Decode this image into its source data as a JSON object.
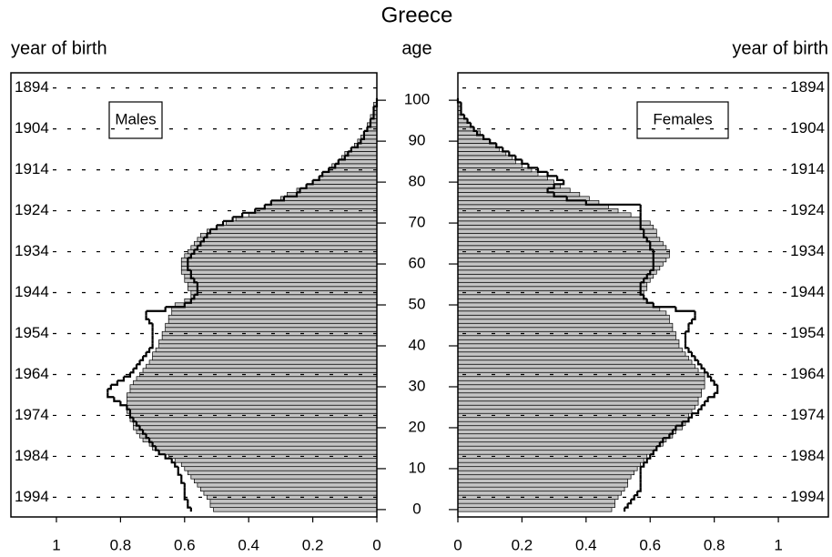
{
  "chart_data": {
    "type": "population_pyramid",
    "title": "Greece",
    "y_label": "age",
    "y2_label": "year of birth",
    "y": [
      0,
      1,
      2,
      3,
      4,
      5,
      6,
      7,
      8,
      9,
      10,
      11,
      12,
      13,
      14,
      15,
      16,
      17,
      18,
      19,
      20,
      21,
      22,
      23,
      24,
      25,
      26,
      27,
      28,
      29,
      30,
      31,
      32,
      33,
      34,
      35,
      36,
      37,
      38,
      39,
      40,
      41,
      42,
      43,
      44,
      45,
      46,
      47,
      48,
      49,
      50,
      51,
      52,
      53,
      54,
      55,
      56,
      57,
      58,
      59,
      60,
      61,
      62,
      63,
      64,
      65,
      66,
      67,
      68,
      69,
      70,
      71,
      72,
      73,
      74,
      75,
      76,
      77,
      78,
      79,
      80,
      81,
      82,
      83,
      84,
      85,
      86,
      87,
      88,
      89,
      90,
      91,
      92,
      93,
      94,
      95,
      96,
      97,
      98,
      99,
      100
    ],
    "ylim": [
      -1.8,
      106.7
    ],
    "yticks": [
      0,
      10,
      20,
      30,
      40,
      50,
      60,
      70,
      80,
      90,
      100
    ],
    "y2lim": [
      1998.8,
      1890.3
    ],
    "y2ticks": [
      1894,
      1904,
      1914,
      1924,
      1934,
      1944,
      1954,
      1964,
      1974,
      1984,
      1994
    ],
    "grid": true,
    "panels": [
      {
        "name": "Males",
        "side": "left",
        "xlim": [
          0,
          1.142
        ],
        "xticks": [
          0,
          0.2,
          0.4,
          0.6,
          0.8,
          1
        ],
        "series": [
          {
            "color": "#c4c4c4",
            "values": [
              0.51,
              0.52,
              0.52,
              0.53,
              0.54,
              0.55,
              0.56,
              0.57,
              0.58,
              0.59,
              0.6,
              0.61,
              0.63,
              0.65,
              0.68,
              0.7,
              0.71,
              0.73,
              0.74,
              0.75,
              0.76,
              0.76,
              0.77,
              0.77,
              0.78,
              0.78,
              0.78,
              0.78,
              0.78,
              0.77,
              0.77,
              0.76,
              0.75,
              0.74,
              0.73,
              0.72,
              0.71,
              0.7,
              0.7,
              0.69,
              0.68,
              0.68,
              0.67,
              0.67,
              0.66,
              0.66,
              0.65,
              0.65,
              0.64,
              0.64,
              0.63,
              0.6,
              0.58,
              0.58,
              0.59,
              0.59,
              0.6,
              0.6,
              0.61,
              0.61,
              0.61,
              0.61,
              0.6,
              0.59,
              0.58,
              0.57,
              0.56,
              0.55,
              0.53,
              0.5,
              0.47,
              0.44,
              0.4,
              0.38,
              0.35,
              0.33,
              0.3,
              0.28,
              0.25,
              0.22,
              0.2,
              0.18,
              0.17,
              0.15,
              0.14,
              0.12,
              0.11,
              0.1,
              0.08,
              0.07,
              0.06,
              0.05,
              0.04,
              0.03,
              0.03,
              0.02,
              0.02,
              0.01,
              0.01,
              0.01,
              0.0
            ]
          },
          {
            "color": "#000000",
            "style": "outline",
            "values": [
              0.58,
              0.59,
              0.59,
              0.6,
              0.6,
              0.6,
              0.6,
              0.61,
              0.61,
              0.62,
              0.62,
              0.63,
              0.64,
              0.66,
              0.68,
              0.69,
              0.7,
              0.71,
              0.72,
              0.73,
              0.74,
              0.75,
              0.76,
              0.77,
              0.77,
              0.78,
              0.8,
              0.82,
              0.84,
              0.84,
              0.83,
              0.81,
              0.79,
              0.77,
              0.76,
              0.75,
              0.74,
              0.73,
              0.72,
              0.71,
              0.7,
              0.7,
              0.7,
              0.7,
              0.7,
              0.7,
              0.71,
              0.72,
              0.72,
              0.66,
              0.6,
              0.58,
              0.57,
              0.56,
              0.56,
              0.56,
              0.57,
              0.58,
              0.58,
              0.59,
              0.59,
              0.59,
              0.58,
              0.57,
              0.56,
              0.55,
              0.54,
              0.53,
              0.52,
              0.5,
              0.48,
              0.45,
              0.42,
              0.38,
              0.35,
              0.33,
              0.29,
              0.25,
              0.24,
              0.22,
              0.2,
              0.18,
              0.17,
              0.15,
              0.13,
              0.12,
              0.1,
              0.09,
              0.08,
              0.06,
              0.05,
              0.04,
              0.04,
              0.03,
              0.02,
              0.02,
              0.01,
              0.01,
              0.01,
              0.0,
              0.0
            ]
          }
        ]
      },
      {
        "name": "Females",
        "side": "right",
        "xlim": [
          0,
          1.156
        ],
        "xticks": [
          0,
          0.2,
          0.4,
          0.6,
          0.8,
          1
        ],
        "series": [
          {
            "color": "#c4c4c4",
            "values": [
              0.48,
              0.49,
              0.49,
              0.5,
              0.51,
              0.52,
              0.53,
              0.53,
              0.54,
              0.55,
              0.56,
              0.57,
              0.58,
              0.59,
              0.61,
              0.62,
              0.64,
              0.65,
              0.67,
              0.68,
              0.7,
              0.71,
              0.72,
              0.72,
              0.73,
              0.74,
              0.75,
              0.75,
              0.76,
              0.76,
              0.77,
              0.77,
              0.77,
              0.77,
              0.75,
              0.74,
              0.73,
              0.72,
              0.71,
              0.7,
              0.69,
              0.69,
              0.68,
              0.68,
              0.67,
              0.67,
              0.66,
              0.66,
              0.65,
              0.63,
              0.61,
              0.59,
              0.58,
              0.58,
              0.59,
              0.59,
              0.6,
              0.61,
              0.62,
              0.63,
              0.64,
              0.65,
              0.66,
              0.66,
              0.65,
              0.64,
              0.63,
              0.62,
              0.62,
              0.61,
              0.6,
              0.57,
              0.54,
              0.5,
              0.47,
              0.44,
              0.41,
              0.38,
              0.35,
              0.32,
              0.3,
              0.28,
              0.25,
              0.23,
              0.2,
              0.18,
              0.17,
              0.15,
              0.13,
              0.12,
              0.1,
              0.08,
              0.07,
              0.05,
              0.04,
              0.03,
              0.02,
              0.01,
              0.01,
              0.01,
              0.0
            ]
          },
          {
            "color": "#000000",
            "style": "outline",
            "values": [
              0.52,
              0.53,
              0.54,
              0.55,
              0.56,
              0.57,
              0.57,
              0.57,
              0.57,
              0.57,
              0.57,
              0.58,
              0.59,
              0.6,
              0.61,
              0.62,
              0.63,
              0.64,
              0.66,
              0.67,
              0.68,
              0.7,
              0.72,
              0.73,
              0.75,
              0.76,
              0.77,
              0.78,
              0.8,
              0.81,
              0.81,
              0.8,
              0.79,
              0.78,
              0.77,
              0.76,
              0.75,
              0.74,
              0.73,
              0.72,
              0.71,
              0.71,
              0.71,
              0.71,
              0.72,
              0.72,
              0.73,
              0.74,
              0.74,
              0.68,
              0.61,
              0.59,
              0.58,
              0.57,
              0.57,
              0.57,
              0.58,
              0.59,
              0.6,
              0.61,
              0.61,
              0.61,
              0.61,
              0.61,
              0.6,
              0.6,
              0.59,
              0.58,
              0.58,
              0.57,
              0.57,
              0.57,
              0.57,
              0.57,
              0.57,
              0.4,
              0.34,
              0.3,
              0.28,
              0.3,
              0.33,
              0.31,
              0.28,
              0.25,
              0.22,
              0.2,
              0.18,
              0.16,
              0.14,
              0.12,
              0.1,
              0.08,
              0.06,
              0.05,
              0.04,
              0.03,
              0.02,
              0.01,
              0.01,
              0.01,
              0.0
            ]
          }
        ]
      }
    ]
  }
}
